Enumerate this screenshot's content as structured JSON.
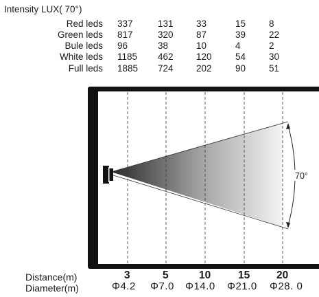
{
  "title": "Intensity LUX( 70°)",
  "rows": [
    {
      "label": "Red leds",
      "values": [
        "337",
        "131",
        "33",
        "15",
        "8"
      ]
    },
    {
      "label": "Green leds",
      "values": [
        "817",
        "320",
        "87",
        "39",
        "22"
      ]
    },
    {
      "label": "Bule leds",
      "values": [
        "96",
        "38",
        "10",
        "4",
        "2"
      ]
    },
    {
      "label": "White leds",
      "values": [
        "1185",
        "462",
        "120",
        "54",
        "30"
      ]
    },
    {
      "label": "Full leds",
      "values": [
        "1885",
        "724",
        "202",
        "90",
        "51"
      ]
    }
  ],
  "angle_label": "70°",
  "distance_label": "Distance(m)",
  "distances": [
    "3",
    "5",
    "10",
    "15",
    "20"
  ],
  "diameter_label": "Diameter(m)",
  "diameters": [
    "Φ4.2",
    "Φ7.0",
    "Φ14.0",
    "Φ21.0",
    "Φ28. 0"
  ],
  "colors": {
    "frame": "#111111",
    "beam_near": "#2a2a2a",
    "beam_far": "#f2f2f2"
  }
}
